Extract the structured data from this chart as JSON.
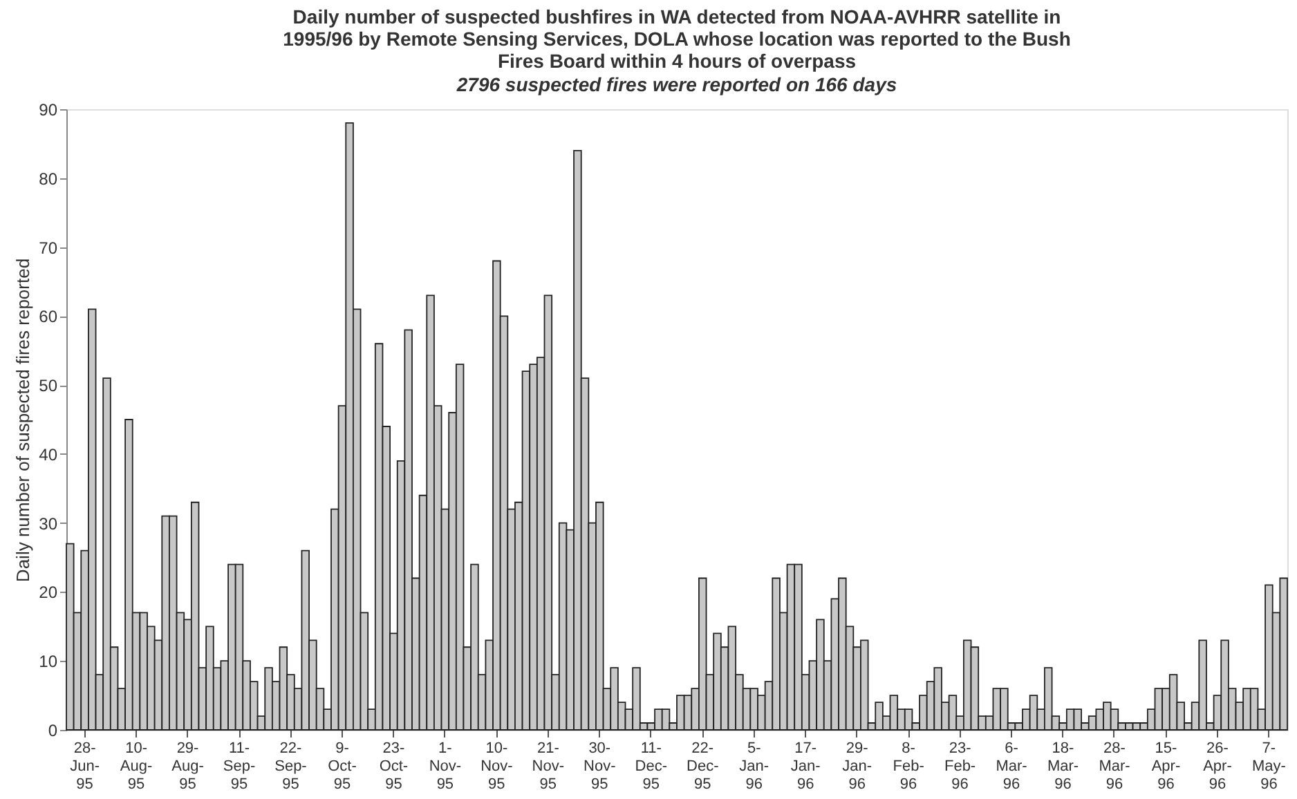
{
  "chart_data": {
    "type": "bar",
    "title": [
      "Daily number of suspected  bushfires in WA detected from NOAA-AVHRR satellite in",
      "1995/96  by Remote Sensing Services, DOLA  whose location was reported to the Bush",
      "Fires Board  within 4 hours of overpass"
    ],
    "subtitle": "2796  suspected fires were reported on 166 days",
    "ylabel": "Daily number of suspected fires reported",
    "categories": [
      null,
      null,
      "28-Jun-95",
      null,
      null,
      null,
      null,
      null,
      null,
      "10-Aug-95",
      null,
      null,
      null,
      null,
      null,
      null,
      "29-Aug-95",
      null,
      null,
      null,
      null,
      null,
      null,
      "11-Sep-95",
      null,
      null,
      null,
      null,
      null,
      null,
      "22-Sep-95",
      null,
      null,
      null,
      null,
      null,
      null,
      "9-Oct-95",
      null,
      null,
      null,
      null,
      null,
      null,
      "23-Oct-95",
      null,
      null,
      null,
      null,
      null,
      null,
      "1-Nov-95",
      null,
      null,
      null,
      null,
      null,
      null,
      "10-Nov-95",
      null,
      null,
      null,
      null,
      null,
      null,
      "21-Nov-95",
      null,
      null,
      null,
      null,
      null,
      null,
      "30-Nov-95",
      null,
      null,
      null,
      null,
      null,
      null,
      "11-Dec-95",
      null,
      null,
      null,
      null,
      null,
      null,
      "22-Dec-95",
      null,
      null,
      null,
      null,
      null,
      null,
      "5-Jan-96",
      null,
      null,
      null,
      null,
      null,
      null,
      "17-Jan-96",
      null,
      null,
      null,
      null,
      null,
      null,
      "29-Jan-96",
      null,
      null,
      null,
      null,
      null,
      null,
      "8-Feb-96",
      null,
      null,
      null,
      null,
      null,
      null,
      "23-Feb-96",
      null,
      null,
      null,
      null,
      null,
      null,
      "6-Mar-96",
      null,
      null,
      null,
      null,
      null,
      null,
      "18-Mar-96",
      null,
      null,
      null,
      null,
      null,
      null,
      "28-Mar-96",
      null,
      null,
      null,
      null,
      null,
      null,
      "15-Apr-96",
      null,
      null,
      null,
      null,
      null,
      null,
      "26-Apr-96",
      null,
      null,
      null,
      null,
      null,
      null,
      "7-May-96",
      null,
      null
    ],
    "values": [
      27,
      17,
      26,
      61,
      8,
      51,
      12,
      6,
      45,
      17,
      17,
      15,
      13,
      31,
      31,
      17,
      16,
      33,
      9,
      15,
      9,
      10,
      24,
      24,
      10,
      7,
      2,
      9,
      7,
      12,
      8,
      6,
      26,
      13,
      6,
      3,
      32,
      47,
      88,
      61,
      17,
      3,
      56,
      44,
      14,
      39,
      58,
      22,
      34,
      63,
      47,
      32,
      46,
      53,
      12,
      24,
      8,
      13,
      68,
      60,
      32,
      33,
      52,
      53,
      54,
      63,
      8,
      30,
      29,
      84,
      51,
      30,
      33,
      6,
      9,
      4,
      3,
      9,
      1,
      1,
      3,
      3,
      1,
      5,
      5,
      6,
      22,
      8,
      14,
      12,
      15,
      8,
      6,
      6,
      5,
      7,
      22,
      17,
      24,
      24,
      8,
      10,
      16,
      10,
      19,
      22,
      15,
      12,
      13,
      1,
      4,
      2,
      5,
      3,
      3,
      1,
      5,
      7,
      9,
      4,
      5,
      2,
      13,
      12,
      2,
      2,
      6,
      6,
      1,
      1,
      3,
      5,
      3,
      9,
      2,
      1,
      3,
      3,
      1,
      2,
      3,
      4,
      3,
      1,
      1,
      1,
      1,
      3,
      6,
      6,
      8,
      4,
      1,
      4,
      13,
      1,
      5,
      13,
      6,
      4,
      6,
      6,
      3,
      21,
      17,
      22
    ],
    "color": "#c8c8c8",
    "ylim": [
      0,
      90
    ],
    "yticks": [
      0,
      10,
      20,
      30,
      40,
      50,
      60,
      70,
      80,
      90
    ],
    "grid": false
  }
}
